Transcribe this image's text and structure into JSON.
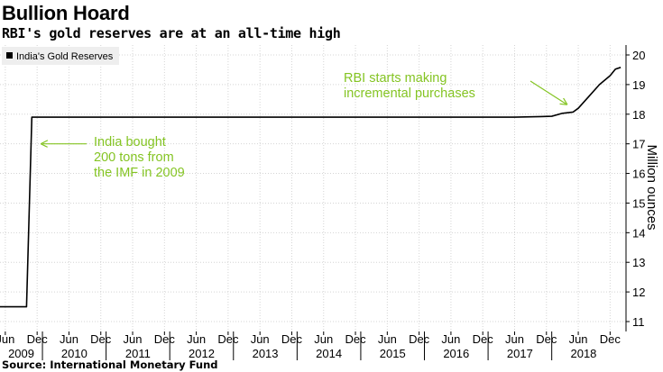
{
  "header": {
    "title": "Bullion Hoard",
    "subtitle": "RBI's gold reserves are at an all-time high"
  },
  "footer": {
    "source": "Source: International Monetary Fund"
  },
  "colors": {
    "line": "#000000",
    "annotation": "#84c423",
    "grid": "#d4d4d4",
    "legend_bg": "#eeeeee"
  },
  "chart_data": {
    "type": "line",
    "title": "",
    "xlabel": "",
    "ylabel": "Million ounces",
    "y_axis_side": "right",
    "ylim": [
      11,
      20
    ],
    "yticks": [
      11,
      12,
      13,
      14,
      15,
      16,
      17,
      18,
      19,
      20
    ],
    "xlim": [
      "2009-05-01",
      "2019-03-01"
    ],
    "x_tick_labels": [
      "Jun",
      "Dec",
      "Jun",
      "Dec",
      "Jun",
      "Dec",
      "Jun",
      "Dec",
      "Jun",
      "Dec",
      "Jun",
      "Dec",
      "Jun",
      "Dec",
      "Jun",
      "Dec",
      "Jun",
      "Dec",
      "Jun",
      "Dec"
    ],
    "x_ticks": [
      "2009-06",
      "2009-12",
      "2010-06",
      "2010-12",
      "2011-06",
      "2011-12",
      "2012-06",
      "2012-12",
      "2013-06",
      "2013-12",
      "2014-06",
      "2014-12",
      "2015-06",
      "2015-12",
      "2016-06",
      "2016-12",
      "2017-06",
      "2017-12",
      "2018-06",
      "2018-12"
    ],
    "year_labels": [
      "2009",
      "2010",
      "2011",
      "2012",
      "2013",
      "2014",
      "2015",
      "2016",
      "2017",
      "2018"
    ],
    "grid": true,
    "legend": {
      "position": "top-left",
      "entries": [
        "India's Gold Reserves"
      ]
    },
    "series": [
      {
        "name": "India's Gold Reserves",
        "points": [
          [
            "2009-05",
            11.5
          ],
          [
            "2009-09",
            11.5
          ],
          [
            "2009-10",
            11.5
          ],
          [
            "2009-11",
            17.9
          ],
          [
            "2010-06",
            17.9
          ],
          [
            "2011-06",
            17.9
          ],
          [
            "2012-06",
            17.9
          ],
          [
            "2013-06",
            17.9
          ],
          [
            "2014-06",
            17.9
          ],
          [
            "2015-06",
            17.9
          ],
          [
            "2016-06",
            17.9
          ],
          [
            "2017-06",
            17.9
          ],
          [
            "2017-11",
            17.92
          ],
          [
            "2018-01",
            17.93
          ],
          [
            "2018-03",
            18.03
          ],
          [
            "2018-05",
            18.07
          ],
          [
            "2018-06",
            18.2
          ],
          [
            "2018-08",
            18.6
          ],
          [
            "2018-10",
            19.0
          ],
          [
            "2018-12",
            19.3
          ],
          [
            "2019-01",
            19.52
          ],
          [
            "2019-02",
            19.58
          ]
        ]
      }
    ],
    "annotations": [
      {
        "lines": [
          "India bought",
          "200 tons from",
          "the IMF in 2009"
        ],
        "arrow_to": [
          "2009-12",
          17.0
        ]
      },
      {
        "lines": [
          "RBI starts making",
          "incremental purchases"
        ],
        "arrow_to": [
          "2018-04",
          18.2
        ]
      }
    ]
  }
}
